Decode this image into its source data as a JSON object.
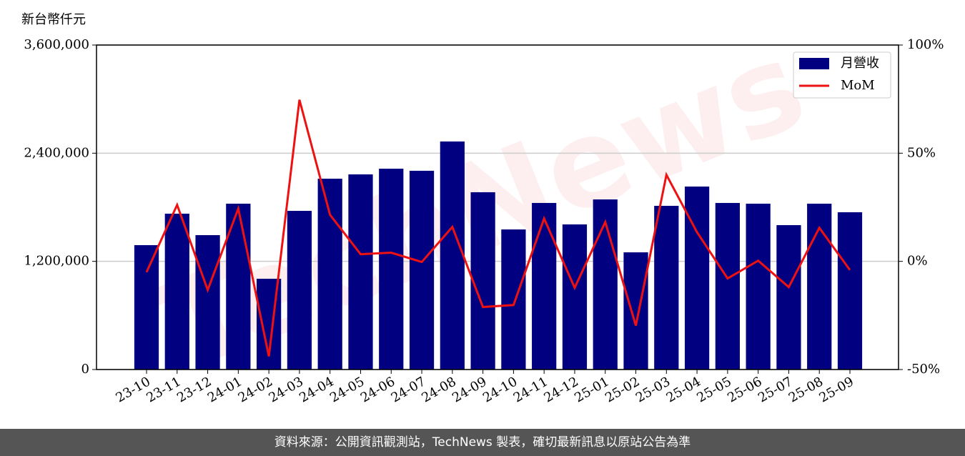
{
  "chart_data": {
    "type": "bar-line",
    "y_label": "新台幣仟元",
    "watermark": "TechNews",
    "footer": "資料來源：公開資訊觀測站，TechNews 製表，確切最新訊息以原站公告為準",
    "categories": [
      "23-10",
      "23-11",
      "23-12",
      "24-01",
      "24-02",
      "24-03",
      "24-04",
      "24-05",
      "24-06",
      "24-07",
      "24-08",
      "24-09",
      "24-10",
      "24-11",
      "24-12",
      "25-01",
      "25-02",
      "25-03",
      "25-04",
      "25-05",
      "25-06",
      "25-07",
      "25-08",
      "25-09"
    ],
    "series": [
      {
        "name": "月營收",
        "type": "bar",
        "color": "#000080",
        "values": [
          1380000,
          1729000,
          1491000,
          1840000,
          1007000,
          1760000,
          2117000,
          2165000,
          2228000,
          2205000,
          2530000,
          1967000,
          1554000,
          1848000,
          1610000,
          1887000,
          1300000,
          1816000,
          2030000,
          1848000,
          1840000,
          1602000,
          1840000,
          1745000
        ]
      },
      {
        "name": "MoM",
        "type": "line",
        "color": "#ee1111",
        "axis": "y2",
        "values": [
          -5.0,
          26.1,
          -13.2,
          24.4,
          -43.9,
          74.7,
          21.5,
          3.3,
          4.0,
          -0.3,
          15.9,
          -21.1,
          -20.2,
          19.8,
          -12.2,
          18.2,
          -29.7,
          40.0,
          13.5,
          -7.9,
          0.3,
          -11.9,
          15.5,
          -4.0
        ]
      }
    ],
    "ylim": [
      0,
      3600000
    ],
    "yticks": [
      0,
      {
        "value": 1200000,
        "label": "1,200,000"
      },
      {
        "value": 2400000,
        "label": "2,400,000"
      },
      {
        "value": 3600000,
        "label": "3,600,000"
      }
    ],
    "y2lim": [
      -50,
      100
    ],
    "y2ticks": [
      {
        "value": -50,
        "label": "-50%"
      },
      {
        "value": 0,
        "label": "0%"
      },
      {
        "value": 50,
        "label": "50%"
      },
      {
        "value": 100,
        "label": "100%"
      }
    ],
    "grid": true,
    "legend": "upper right"
  }
}
